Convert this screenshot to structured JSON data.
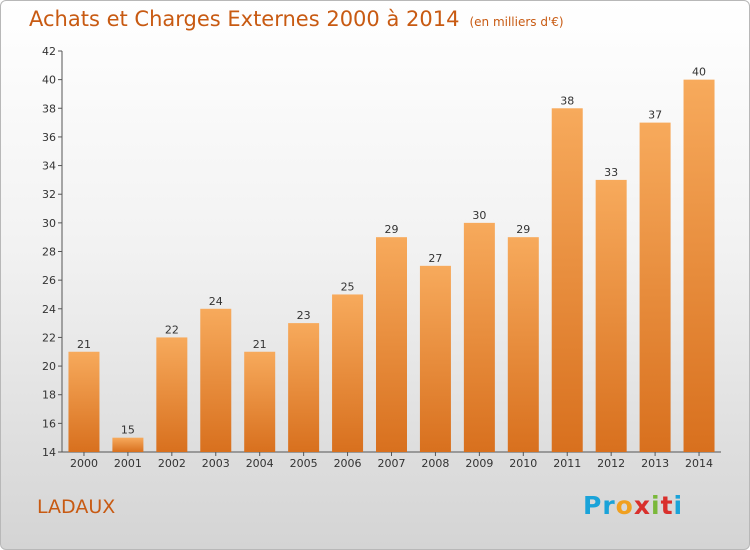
{
  "header": {
    "title": "Achats et Charges Externes 2000 à 2014",
    "subtitle": "(en milliers d'€)"
  },
  "footer": {
    "commune": "LADAUX",
    "logo_letters": [
      "P",
      "r",
      "o",
      "x",
      "i",
      "t",
      "i"
    ],
    "logo_colors": [
      "#1aa3d9",
      "#1aa3d9",
      "#f0a020",
      "#d9302c",
      "#7ab83a",
      "#d9302c",
      "#1aa3d9"
    ]
  },
  "colors": {
    "bar_light": "#f7aa5c",
    "bar_dark": "#d8701e",
    "text": "#333333",
    "title": "#c85a12"
  },
  "chart_data": {
    "type": "bar",
    "title": "Achats et Charges Externes 2000 à 2014",
    "subtitle": "(en milliers d'€)",
    "categories": [
      "2000",
      "2001",
      "2002",
      "2003",
      "2004",
      "2005",
      "2006",
      "2007",
      "2008",
      "2009",
      "2010",
      "2011",
      "2012",
      "2013",
      "2014"
    ],
    "values": [
      21,
      15,
      22,
      24,
      21,
      23,
      25,
      29,
      27,
      30,
      29,
      38,
      33,
      37,
      40
    ],
    "ylim": [
      14,
      42
    ],
    "yticks": [
      14,
      16,
      18,
      20,
      22,
      24,
      26,
      28,
      30,
      32,
      34,
      36,
      38,
      40,
      42
    ],
    "grid": false,
    "legend": "none"
  }
}
